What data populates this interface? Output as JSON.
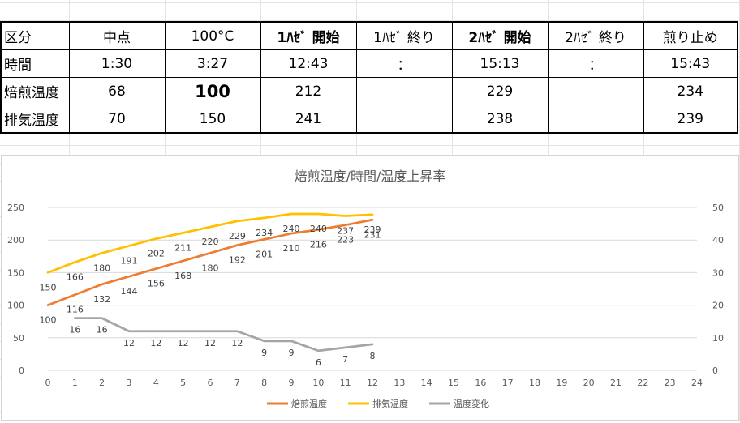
{
  "table": {
    "header": [
      "区分",
      "中点",
      "100°C",
      "1ﾊｾﾞ 開始",
      "1ﾊｾﾞ 終り",
      "2ﾊｾﾞ 開始",
      "2ﾊｾﾞ 終り",
      "煎り止め"
    ],
    "rows": [
      [
        "時間",
        "1:30",
        "3:27",
        "12:43",
        "：",
        "15:13",
        "：",
        "15:43"
      ],
      [
        "焙煎温度",
        "68",
        "100",
        "212",
        "",
        "229",
        "",
        "234"
      ],
      [
        "排気温度",
        "70",
        "150",
        "241",
        "",
        "238",
        "",
        "239"
      ]
    ]
  },
  "chart_data": {
    "type": "line",
    "title": "焙煎温度/時間/温度上昇率",
    "x": [
      0,
      1,
      2,
      3,
      4,
      5,
      6,
      7,
      8,
      9,
      10,
      11,
      12,
      13,
      14,
      15,
      16,
      17,
      18,
      19,
      20,
      21,
      22,
      23,
      24
    ],
    "ylim": [
      0,
      250
    ],
    "y_ticks": [
      0,
      50,
      100,
      150,
      200,
      250
    ],
    "y2lim": [
      0,
      50
    ],
    "y2_ticks": [
      0,
      10,
      20,
      30,
      40,
      50
    ],
    "legend_position": "bottom",
    "gridlines": true,
    "series": [
      {
        "name": "焙煎温度",
        "axis": "left",
        "color": "#ED7D31",
        "x": [
          0,
          1,
          2,
          3,
          4,
          5,
          6,
          7,
          8,
          9,
          10,
          11,
          12
        ],
        "values": [
          100,
          116,
          132,
          144,
          156,
          168,
          180,
          192,
          201,
          210,
          216,
          223,
          231
        ]
      },
      {
        "name": "排気温度",
        "axis": "left",
        "color": "#FFC000",
        "x": [
          0,
          1,
          2,
          3,
          4,
          5,
          6,
          7,
          8,
          9,
          10,
          11,
          12
        ],
        "values": [
          150,
          166,
          180,
          191,
          202,
          211,
          220,
          229,
          234,
          240,
          240,
          237,
          239
        ]
      },
      {
        "name": "温度変化",
        "axis": "right",
        "color": "#A5A5A5",
        "x": [
          1,
          2,
          3,
          4,
          5,
          6,
          7,
          8,
          9,
          10,
          11,
          12
        ],
        "values": [
          16,
          16,
          12,
          12,
          12,
          12,
          12,
          9,
          9,
          6,
          7,
          8
        ]
      }
    ]
  }
}
